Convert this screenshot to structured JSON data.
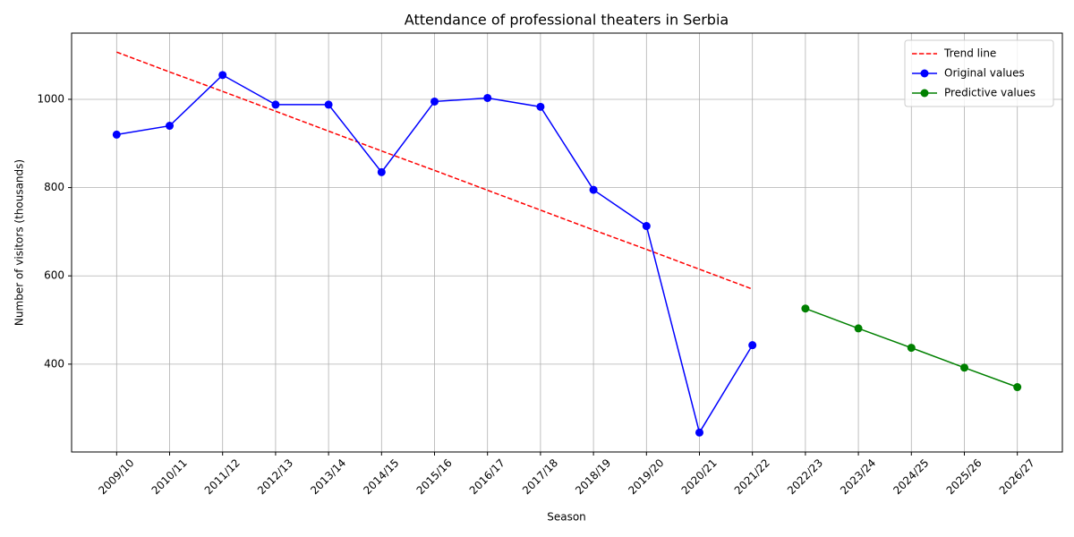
{
  "chart_data": {
    "type": "line",
    "title": "Attendance of professional theaters in Serbia",
    "x_label": "Season",
    "y_label": "Number of visitors (thousands)",
    "categories": [
      "2009/10",
      "2010/11",
      "2011/12",
      "2012/13",
      "2013/14",
      "2014/15",
      "2015/16",
      "2016/17",
      "2017/18",
      "2018/19",
      "2019/20",
      "2020/21",
      "2021/22",
      "2022/23",
      "2023/24",
      "2024/25",
      "2025/26",
      "2026/27"
    ],
    "series": [
      {
        "name": "Trend line",
        "color": "#ff0000",
        "linestyle": "dashed",
        "marker": false,
        "values": [
          1107,
          1062,
          1018,
          973,
          928,
          883,
          839,
          794,
          749,
          704,
          660,
          615,
          570,
          null,
          null,
          null,
          null,
          null
        ]
      },
      {
        "name": "Original values",
        "color": "#0000ff",
        "linestyle": "solid",
        "marker": true,
        "values": [
          920,
          940,
          1055,
          988,
          988,
          835,
          995,
          1003,
          983,
          795,
          713,
          245,
          443,
          null,
          null,
          null,
          null,
          null
        ]
      },
      {
        "name": "Predictive values",
        "color": "#008000",
        "linestyle": "solid",
        "marker": true,
        "values": [
          null,
          null,
          null,
          null,
          null,
          null,
          null,
          null,
          null,
          null,
          null,
          null,
          null,
          526,
          481,
          437,
          392,
          348
        ]
      }
    ],
    "ylim": [
      201,
      1150
    ],
    "yticks": [
      400,
      600,
      800,
      1000
    ],
    "grid": true,
    "legend": "upper right"
  }
}
